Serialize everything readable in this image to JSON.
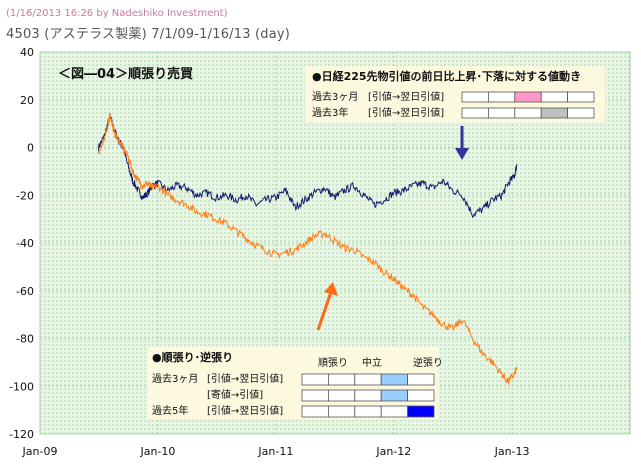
{
  "header": {
    "stamp": "(1/16/2013 16:26 by Nadeshiko Investment)",
    "title": "4503 (アステラス製薬) 7/1/09-1/16/13 (day)"
  },
  "colors": {
    "plot_bg": "#e9f6e6",
    "dot": "#9bd39b",
    "navy_series": "#1a1a6e",
    "orange_series": "#ff7f1a",
    "arrow_blue": "#33339a",
    "arrow_orange": "#ff6a14",
    "pink": "#ff99cc",
    "gray": "#c0c0c0",
    "light_blue": "#99ccff",
    "blue": "#0000ff",
    "box_bg": "#fdf9df"
  },
  "chart_data": {
    "type": "line",
    "title": "＜図―04＞順張り売買",
    "xlabel": "",
    "ylabel": "",
    "x_ticks": [
      "Jan-09",
      "Jan-10",
      "Jan-11",
      "Jan-12",
      "Jan-13"
    ],
    "x_range": [
      "2009-01-01",
      "2014-01-01"
    ],
    "ylim": [
      -120,
      40
    ],
    "y_ticks": [
      40,
      20,
      0,
      -20,
      -40,
      -60,
      -80,
      -100,
      -120
    ],
    "grid": "dotted",
    "series": [
      {
        "color": "navy",
        "points": [
          [
            "2009-07-01",
            0
          ],
          [
            "2009-07-20",
            5
          ],
          [
            "2009-08-05",
            13
          ],
          [
            "2009-08-20",
            7
          ],
          [
            "2009-09-01",
            3
          ],
          [
            "2009-09-15",
            0
          ],
          [
            "2009-10-01",
            -8
          ],
          [
            "2009-10-15",
            -14
          ],
          [
            "2009-11-01",
            -18
          ],
          [
            "2009-11-15",
            -21
          ],
          [
            "2009-12-01",
            -19
          ],
          [
            "2009-12-15",
            -16
          ],
          [
            "2010-01-01",
            -15
          ],
          [
            "2010-02-01",
            -18
          ],
          [
            "2010-03-01",
            -16
          ],
          [
            "2010-04-01",
            -17
          ],
          [
            "2010-05-01",
            -20
          ],
          [
            "2010-06-01",
            -19
          ],
          [
            "2010-07-01",
            -21
          ],
          [
            "2010-08-01",
            -20
          ],
          [
            "2010-09-01",
            -22
          ],
          [
            "2010-10-01",
            -20
          ],
          [
            "2010-11-01",
            -24
          ],
          [
            "2010-12-01",
            -22
          ],
          [
            "2011-01-01",
            -21
          ],
          [
            "2011-02-01",
            -18
          ],
          [
            "2011-03-01",
            -25
          ],
          [
            "2011-04-01",
            -22
          ],
          [
            "2011-05-01",
            -19
          ],
          [
            "2011-06-01",
            -17
          ],
          [
            "2011-07-01",
            -21
          ],
          [
            "2011-08-01",
            -18
          ],
          [
            "2011-09-01",
            -16
          ],
          [
            "2011-10-01",
            -20
          ],
          [
            "2011-11-01",
            -24
          ],
          [
            "2011-12-01",
            -22
          ],
          [
            "2012-01-01",
            -19
          ],
          [
            "2012-02-01",
            -18
          ],
          [
            "2012-03-01",
            -16
          ],
          [
            "2012-04-01",
            -15
          ],
          [
            "2012-05-01",
            -17
          ],
          [
            "2012-06-01",
            -14
          ],
          [
            "2012-07-01",
            -18
          ],
          [
            "2012-08-01",
            -20
          ],
          [
            "2012-09-01",
            -28
          ],
          [
            "2012-10-01",
            -26
          ],
          [
            "2012-11-01",
            -22
          ],
          [
            "2012-12-01",
            -20
          ],
          [
            "2012-12-20",
            -15
          ],
          [
            "2013-01-08",
            -12
          ],
          [
            "2013-01-16",
            -7
          ]
        ]
      },
      {
        "color": "orange",
        "points": [
          [
            "2009-07-01",
            -2
          ],
          [
            "2009-07-20",
            3
          ],
          [
            "2009-08-05",
            14
          ],
          [
            "2009-08-20",
            6
          ],
          [
            "2009-09-01",
            3
          ],
          [
            "2009-09-15",
            0
          ],
          [
            "2009-10-01",
            -4
          ],
          [
            "2009-10-15",
            -10
          ],
          [
            "2009-11-01",
            -14
          ],
          [
            "2009-11-15",
            -16
          ],
          [
            "2009-12-01",
            -15
          ],
          [
            "2009-12-15",
            -17
          ],
          [
            "2010-01-01",
            -16
          ],
          [
            "2010-02-01",
            -20
          ],
          [
            "2010-03-01",
            -22
          ],
          [
            "2010-04-01",
            -24
          ],
          [
            "2010-05-01",
            -27
          ],
          [
            "2010-06-01",
            -28
          ],
          [
            "2010-07-01",
            -30
          ],
          [
            "2010-08-01",
            -32
          ],
          [
            "2010-09-01",
            -35
          ],
          [
            "2010-10-01",
            -38
          ],
          [
            "2010-11-01",
            -41
          ],
          [
            "2010-12-01",
            -43
          ],
          [
            "2011-01-01",
            -45
          ],
          [
            "2011-02-01",
            -44
          ],
          [
            "2011-03-01",
            -43
          ],
          [
            "2011-04-01",
            -40
          ],
          [
            "2011-05-01",
            -37
          ],
          [
            "2011-06-01",
            -36
          ],
          [
            "2011-07-01",
            -39
          ],
          [
            "2011-08-01",
            -42
          ],
          [
            "2011-09-01",
            -43
          ],
          [
            "2011-10-01",
            -46
          ],
          [
            "2011-11-01",
            -48
          ],
          [
            "2011-12-01",
            -52
          ],
          [
            "2012-01-01",
            -55
          ],
          [
            "2012-02-01",
            -59
          ],
          [
            "2012-03-01",
            -62
          ],
          [
            "2012-04-01",
            -67
          ],
          [
            "2012-05-01",
            -70
          ],
          [
            "2012-06-01",
            -74
          ],
          [
            "2012-07-01",
            -76
          ],
          [
            "2012-08-01",
            -72
          ],
          [
            "2012-09-01",
            -80
          ],
          [
            "2012-10-01",
            -86
          ],
          [
            "2012-11-01",
            -90
          ],
          [
            "2012-12-01",
            -95
          ],
          [
            "2012-12-20",
            -98
          ],
          [
            "2013-01-08",
            -95
          ],
          [
            "2013-01-16",
            -92
          ]
        ]
      }
    ],
    "annotations": {
      "top_box": {
        "title": "●日経225先物引値の前日比上昇･下落に対する値動き",
        "rows": [
          {
            "period": "過去3ヶ月",
            "label": "[引値→翌日引値]",
            "highlight": 2,
            "color": "pink"
          },
          {
            "period": "過去3年",
            "label": "[引値→翌日引値]",
            "highlight": 3,
            "color": "gray"
          }
        ]
      },
      "bottom_box": {
        "title": "●順張り･逆張り",
        "headers": [
          "順張り",
          "中立",
          "逆張り"
        ],
        "rows": [
          {
            "period": "過去3ヶ月",
            "label": "[引値→翌日引値]",
            "highlight": 3,
            "color": "light_blue"
          },
          {
            "period": "",
            "label": "[寄値→引値]",
            "highlight": 3,
            "color": "light_blue"
          },
          {
            "period": "過去5年",
            "label": "[引値→翌日引値]",
            "highlight": 4,
            "color": "blue"
          }
        ]
      }
    }
  }
}
